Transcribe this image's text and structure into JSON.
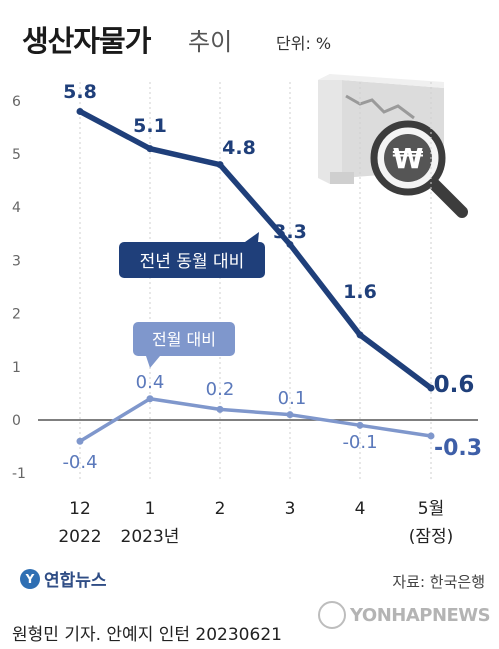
{
  "title": "생산자물가",
  "title_suffix": "추이",
  "unit": "단위: %",
  "chart_data": {
    "type": "line",
    "categories": [
      [
        "12",
        "2022"
      ],
      [
        "1",
        "2023년"
      ],
      [
        "2",
        ""
      ],
      [
        "3",
        ""
      ],
      [
        "4",
        ""
      ],
      [
        "5월",
        "(잠정)"
      ]
    ],
    "series": [
      {
        "name": "전년 동월 대비",
        "values": [
          5.8,
          5.1,
          4.8,
          3.3,
          1.6,
          0.6
        ],
        "labels": [
          "5.8",
          "5.1",
          "4.8",
          "3.3",
          "1.6",
          "0.6"
        ],
        "color": "#1f3f7a"
      },
      {
        "name": "전월 대비",
        "values": [
          -0.4,
          0.4,
          0.2,
          0.1,
          -0.1,
          -0.3
        ],
        "labels": [
          "-0.4",
          "0.4",
          "0.2",
          "0.1",
          "-0.1",
          "-0.3"
        ],
        "color": "#7f97cc"
      }
    ],
    "yticks": [
      "6",
      "5",
      "4",
      "3",
      "2",
      "1",
      "0",
      "-1"
    ],
    "ylim": [
      -1,
      6
    ],
    "grid": "vertical dashed"
  },
  "illustration": {
    "icon": "won-magnifier-chart-icon",
    "symbol": "₩"
  },
  "source": "자료: 한국은행",
  "logo": {
    "mark": "Y",
    "text": "연합뉴스"
  },
  "watermark": "YONHAPNEWS",
  "credit": "원형민 기자. 안예지 인턴  20230621"
}
